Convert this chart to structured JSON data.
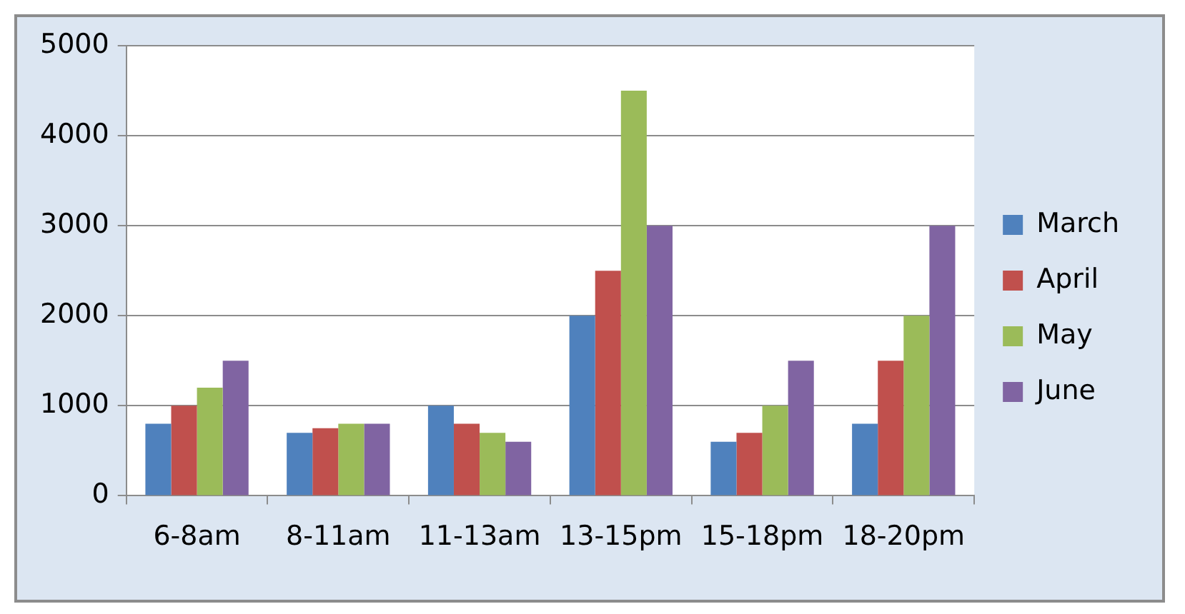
{
  "chart_data": {
    "type": "bar",
    "categories": [
      "6-8am",
      "8-11am",
      "11-13am",
      "13-15pm",
      "15-18pm",
      "18-20pm"
    ],
    "series": [
      {
        "name": "March",
        "color": "#4f81bd",
        "values": [
          800,
          700,
          1000,
          2000,
          600,
          800
        ]
      },
      {
        "name": "April",
        "color": "#c0504d",
        "values": [
          1000,
          750,
          800,
          2500,
          700,
          1500
        ]
      },
      {
        "name": "May",
        "color": "#9bbb59",
        "values": [
          1200,
          800,
          700,
          4500,
          1000,
          2000
        ]
      },
      {
        "name": "June",
        "color": "#8064a2",
        "values": [
          1500,
          800,
          600,
          3000,
          1500,
          3000
        ]
      }
    ],
    "ylim": [
      0,
      5000
    ],
    "yticks": [
      0,
      1000,
      2000,
      3000,
      4000,
      5000
    ],
    "grid": "y",
    "legend": "right"
  }
}
